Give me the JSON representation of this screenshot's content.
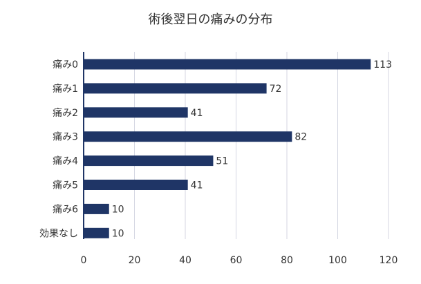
{
  "chart_data": {
    "type": "bar",
    "orientation": "horizontal",
    "title": "術後翌日の痛みの分布",
    "xlabel": "",
    "ylabel": "",
    "categories": [
      "痛み0",
      "痛み1",
      "痛み2",
      "痛み3",
      "痛み4",
      "痛み5",
      "痛み6",
      "効果なし"
    ],
    "values": [
      113,
      72,
      41,
      82,
      51,
      41,
      10,
      10
    ],
    "xlim": [
      0,
      120
    ],
    "x_ticks": [
      0,
      20,
      40,
      60,
      80,
      100,
      120
    ],
    "grid": "vertical",
    "legend": "none",
    "bar_color": "#1f3566",
    "grid_color": "#d4d6e2",
    "axis_color": "#1f3566"
  }
}
